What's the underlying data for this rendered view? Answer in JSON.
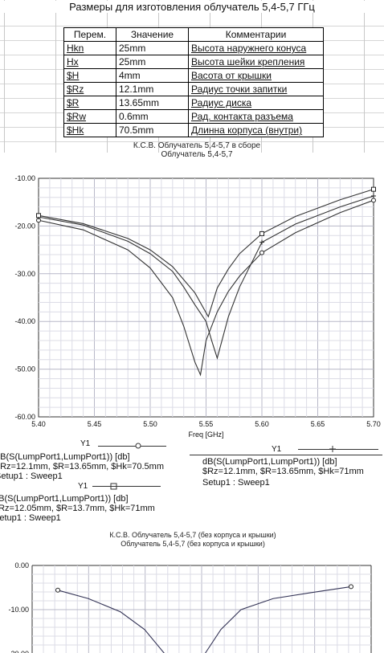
{
  "spreadsheet": {
    "title": "Размеры для изготовления облучатель 5,4-5,7 ГГц",
    "headers": [
      "Перем.",
      "Значение",
      "Комментарии"
    ],
    "rows": [
      [
        "Hkn",
        "25mm",
        "Высота наружнего конуса"
      ],
      [
        "Hx",
        "25mm",
        "Высота шейки крепления"
      ],
      [
        "$H",
        "4mm",
        "Васота от крышки"
      ],
      [
        "$Rz",
        "12.1mm",
        "Радиус точки запитки"
      ],
      [
        "$R",
        "13.65mm",
        "Радиус диска"
      ],
      [
        "$Rw",
        "0.6mm",
        "Рад. контакта разъема"
      ],
      [
        "$Hk",
        "70.5mm",
        "Длинна корпуса (внутри)"
      ]
    ]
  },
  "chart_data": [
    {
      "type": "line",
      "title": "К.С.В. Облучатель 5,4-5,7 в сборе",
      "subtitle": "Облучатель 5,4-5,7",
      "xlabel": "Freq [GHz]",
      "ylabel": "",
      "xlim": [
        5.4,
        5.7
      ],
      "ylim": [
        -60,
        -10
      ],
      "xticks": [
        "5.40",
        "5.45",
        "5.50",
        "5.55",
        "5.60",
        "5.65",
        "5.70"
      ],
      "yticks": [
        "-10.00",
        "-20.00",
        "-30.00",
        "-40.00",
        "-50.00",
        "-60.00"
      ],
      "grid": true,
      "series": [
        {
          "name": "dB(S(LumpPort1,LumpPort1)) [db]",
          "marker": "circle",
          "color": "#333333",
          "x": [
            5.4,
            5.44,
            5.48,
            5.5,
            5.52,
            5.53,
            5.54,
            5.545,
            5.55,
            5.56,
            5.57,
            5.58,
            5.6,
            5.63,
            5.67,
            5.7
          ],
          "y": [
            -18.8,
            -20.8,
            -25.0,
            -28.8,
            -35.0,
            -41.0,
            -48.5,
            -51.2,
            -44.0,
            -38.0,
            -33.7,
            -30.5,
            -25.6,
            -21.4,
            -17.2,
            -14.6
          ]
        },
        {
          "name": "dB(S(LumpPort1,LumpPort1)) [db]",
          "marker": "plus",
          "color": "#333333",
          "x": [
            5.4,
            5.44,
            5.48,
            5.5,
            5.52,
            5.53,
            5.54,
            5.55,
            5.555,
            5.56,
            5.57,
            5.58,
            5.6,
            5.63,
            5.67,
            5.7
          ],
          "y": [
            -18.1,
            -19.8,
            -23.2,
            -25.8,
            -29.5,
            -32.8,
            -36.5,
            -40.0,
            -44.0,
            -47.7,
            -39.0,
            -32.8,
            -23.4,
            -19.6,
            -16.0,
            -13.7
          ]
        },
        {
          "name": "dB(S(LumpPort1,LumpPort1)) [db]",
          "marker": "square",
          "color": "#333333",
          "x": [
            5.4,
            5.44,
            5.48,
            5.5,
            5.52,
            5.54,
            5.552,
            5.56,
            5.57,
            5.58,
            5.6,
            5.63,
            5.67,
            5.7
          ],
          "y": [
            -17.8,
            -19.5,
            -22.6,
            -25.0,
            -28.5,
            -34.0,
            -39.0,
            -33.0,
            -29.0,
            -25.8,
            -21.6,
            -18.0,
            -14.5,
            -12.3
          ]
        }
      ]
    },
    {
      "type": "line",
      "title": "К.С.В. Облучатель 5,4-5,7 (без корпуса и крышки)",
      "subtitle": "Облучатель 5,4-5,7 (без корпуса и крышки)",
      "xlabel": "",
      "ylabel": "",
      "ylim": [
        -20,
        0
      ],
      "yticks": [
        "0.00",
        "-10.00",
        "-20.00"
      ],
      "grid": true,
      "series": [
        {
          "name": "",
          "marker": "circle",
          "color": "#333355",
          "y_visible": [
            -5.6,
            -7.5,
            -10.5,
            -14.5,
            -20.0,
            -20.0,
            -14.5,
            -10.0,
            -7.5,
            -5.8,
            -4.8
          ]
        }
      ]
    }
  ],
  "legend": [
    {
      "tag": "Y1",
      "marker": "circle",
      "trace": "dB(S(LumpPort1,LumpPort1)) [db]",
      "params": "$Rz=12.1mm, $R=13.65mm, $Hk=70.5mm",
      "setup": "Setup1 : Sweep1"
    },
    {
      "tag": "Y1",
      "marker": "plus",
      "trace": "dB(S(LumpPort1,LumpPort1)) [db]",
      "params": "$Rz=12.1mm, $R=13.65mm, $Hk=71mm",
      "setup": "Setup1 : Sweep1"
    },
    {
      "tag": "Y1",
      "marker": "square",
      "trace": "dB(S(LumpPort1,LumpPort1)) [db]",
      "params": "$Rz=12.05mm, $R=13.7mm, $Hk=71mm",
      "setup": "Setup1 : Sweep1"
    }
  ]
}
